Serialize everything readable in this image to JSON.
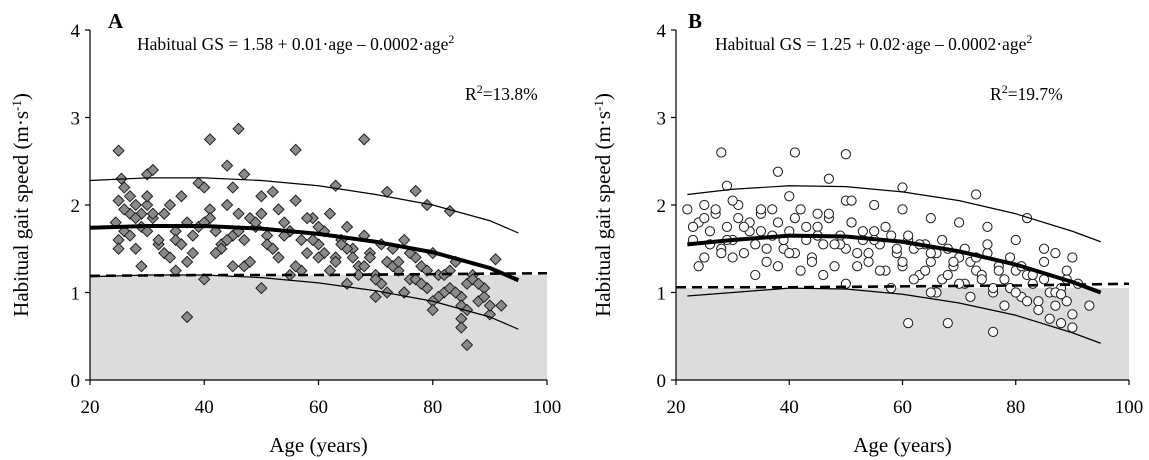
{
  "figure": {
    "colors": {
      "shade": "#dcdcdc",
      "marker_fill_A": "#8a8a8a",
      "marker_fill_B": "#ffffff",
      "marker_stroke": "#1a1a1a",
      "fit_line": "#000000",
      "band_line": "#000000",
      "threshold_line": "#000000"
    }
  },
  "chart_data": [
    {
      "type": "scatter",
      "panel_label": "A",
      "xlabel": "Age (years)",
      "ylabel": "Habitual gait speed (m·s",
      "ylabel_sup": "-1",
      "ylabel_end": ")",
      "xlim": [
        20,
        100
      ],
      "ylim": [
        0,
        4
      ],
      "xticks": [
        "20",
        "40",
        "60",
        "80",
        "100"
      ],
      "yticks": [
        "0",
        "1",
        "2",
        "3",
        "4"
      ],
      "equation": {
        "text": "Habitual GS = 1.58 + 0.01·age – 0.0002·age",
        "sup": "2",
        "intercept": 1.58,
        "linear": 0.01,
        "quadratic": -0.0002
      },
      "r2": {
        "prefix": "R",
        "sup": "2",
        "suffix": "=13.8%"
      },
      "marker": "diamond",
      "fit_curve": {
        "x": [
          20,
          30,
          40,
          50,
          60,
          70,
          80,
          90,
          95
        ],
        "y": [
          1.74,
          1.76,
          1.76,
          1.73,
          1.67,
          1.58,
          1.46,
          1.28,
          1.14
        ]
      },
      "upper_band": {
        "x": [
          20,
          30,
          40,
          50,
          60,
          70,
          80,
          90,
          95
        ],
        "y": [
          2.28,
          2.31,
          2.31,
          2.28,
          2.22,
          2.12,
          2.0,
          1.82,
          1.68
        ]
      },
      "lower_band": {
        "x": [
          20,
          30,
          40,
          50,
          60,
          70,
          80,
          90,
          95
        ],
        "y": [
          1.18,
          1.2,
          1.2,
          1.17,
          1.11,
          1.02,
          0.9,
          0.72,
          0.58
        ]
      },
      "threshold": 1.2,
      "threshold_segment": [
        {
          "x": [
            20,
            40,
            60,
            80,
            100
          ],
          "y": [
            1.19,
            1.2,
            1.2,
            1.21,
            1.22
          ]
        }
      ],
      "points": {
        "x": [
          25,
          25.5,
          26,
          27,
          28,
          29,
          30,
          31,
          24.5,
          25,
          26,
          27,
          28,
          29,
          30,
          31,
          32,
          33,
          34,
          35,
          36,
          37,
          38,
          39,
          40,
          41,
          42,
          43,
          44,
          45,
          46,
          47,
          48,
          49,
          50,
          51,
          52,
          53,
          54,
          55,
          56,
          57,
          58,
          59,
          60,
          61,
          62,
          63,
          64,
          65,
          66,
          67,
          68,
          69,
          70,
          71,
          72,
          73,
          74,
          75,
          76,
          77,
          78,
          79,
          80,
          81,
          82,
          83,
          84,
          85,
          86,
          87,
          88,
          89,
          90,
          91,
          92,
          25,
          27,
          29,
          31,
          33,
          35,
          37,
          39,
          41,
          43,
          45,
          47,
          49,
          51,
          53,
          55,
          57,
          59,
          61,
          63,
          65,
          67,
          69,
          71,
          73,
          75,
          77,
          79,
          81,
          83,
          85,
          87,
          89,
          26,
          28,
          30,
          32,
          34,
          36,
          38,
          40,
          42,
          44,
          46,
          48,
          50,
          52,
          54,
          56,
          58,
          60,
          62,
          64,
          66,
          68,
          70,
          72,
          74,
          76,
          78,
          80,
          82,
          84,
          86,
          88,
          25,
          30,
          35,
          40,
          45,
          50,
          55,
          60,
          65,
          70,
          75,
          80,
          85,
          90,
          37,
          41,
          44,
          46,
          56,
          68,
          85,
          86,
          47,
          52,
          63,
          72,
          77,
          79,
          83
        ],
        "y": [
          2.62,
          2.3,
          2.2,
          2.1,
          2.0,
          1.9,
          2.35,
          2.4,
          1.8,
          1.6,
          1.7,
          1.9,
          1.5,
          1.75,
          2.0,
          1.85,
          1.55,
          1.9,
          2.0,
          1.7,
          2.1,
          1.8,
          1.45,
          2.25,
          2.2,
          1.95,
          1.7,
          1.55,
          2.0,
          2.2,
          1.9,
          1.6,
          1.85,
          1.75,
          2.1,
          1.65,
          1.5,
          1.95,
          1.8,
          1.7,
          2.05,
          1.6,
          1.45,
          1.85,
          1.55,
          1.7,
          1.9,
          1.4,
          1.6,
          1.75,
          1.5,
          1.3,
          1.65,
          1.45,
          1.2,
          1.55,
          1.35,
          1.5,
          1.25,
          1.6,
          1.15,
          1.4,
          1.3,
          1.05,
          1.45,
          1.2,
          1.0,
          1.25,
          1.35,
          0.95,
          1.1,
          1.2,
          0.9,
          1.05,
          0.75,
          1.38,
          0.85,
          1.5,
          1.65,
          1.3,
          1.9,
          1.45,
          1.6,
          1.35,
          1.75,
          1.85,
          1.5,
          1.65,
          1.3,
          1.8,
          1.55,
          1.4,
          1.7,
          1.25,
          1.6,
          1.45,
          1.35,
          1.5,
          1.2,
          1.4,
          1.1,
          1.3,
          1.0,
          1.15,
          1.25,
          0.95,
          1.05,
          0.85,
          1.15,
          0.95,
          1.95,
          1.85,
          2.1,
          1.6,
          1.4,
          1.55,
          1.65,
          1.8,
          1.45,
          1.6,
          1.7,
          1.35,
          1.9,
          1.5,
          1.65,
          1.3,
          1.85,
          1.75,
          1.25,
          1.55,
          1.4,
          1.3,
          1.15,
          1.0,
          1.35,
          1.45,
          1.1,
          0.9,
          1.2,
          1.0,
          0.8,
          1.1,
          2.05,
          1.7,
          1.25,
          1.15,
          1.3,
          1.05,
          1.2,
          1.4,
          1.1,
          0.95,
          1.0,
          0.8,
          0.7,
          0.85,
          0.72,
          2.75,
          2.45,
          2.87,
          2.63,
          2.75,
          0.6,
          0.4,
          2.35,
          2.15,
          2.22,
          2.15,
          2.16,
          2.0,
          1.93
        ]
      }
    },
    {
      "type": "scatter",
      "panel_label": "B",
      "xlabel": "Age (years)",
      "ylabel": "Habitual gait speed (m·s",
      "ylabel_sup": "-1",
      "ylabel_end": ")",
      "xlim": [
        20,
        100
      ],
      "ylim": [
        0,
        4
      ],
      "xticks": [
        "20",
        "40",
        "60",
        "80",
        "100"
      ],
      "yticks": [
        "0",
        "1",
        "2",
        "3",
        "4"
      ],
      "equation": {
        "text": "Habitual GS = 1.25 + 0.02·age – 0.0002·age",
        "sup": "2",
        "intercept": 1.25,
        "linear": 0.02,
        "quadratic": -0.0002
      },
      "r2": {
        "prefix": "R",
        "sup": "2",
        "suffix": "=19.7%"
      },
      "marker": "circle",
      "fit_curve": {
        "x": [
          22,
          30,
          40,
          50,
          60,
          70,
          80,
          90,
          95
        ],
        "y": [
          1.55,
          1.6,
          1.65,
          1.64,
          1.58,
          1.47,
          1.32,
          1.12,
          1.0
        ]
      },
      "upper_band": {
        "x": [
          22,
          30,
          40,
          50,
          60,
          70,
          80,
          90,
          95
        ],
        "y": [
          2.12,
          2.18,
          2.22,
          2.21,
          2.15,
          2.05,
          1.9,
          1.7,
          1.58
        ]
      },
      "lower_band": {
        "x": [
          22,
          30,
          40,
          50,
          60,
          70,
          80,
          90,
          95
        ],
        "y": [
          0.96,
          1.0,
          1.05,
          1.04,
          0.98,
          0.88,
          0.74,
          0.54,
          0.42
        ]
      },
      "threshold": 1.05,
      "threshold_segment": [
        {
          "x": [
            20,
            40,
            60,
            80,
            100
          ],
          "y": [
            1.06,
            1.06,
            1.07,
            1.08,
            1.1
          ]
        }
      ],
      "points": {
        "x": [
          22,
          23,
          24,
          25,
          26,
          27,
          28,
          29,
          30,
          31,
          32,
          33,
          34,
          35,
          36,
          37,
          38,
          39,
          40,
          41,
          42,
          43,
          44,
          45,
          46,
          47,
          48,
          49,
          50,
          51,
          52,
          53,
          54,
          55,
          56,
          57,
          58,
          59,
          60,
          61,
          62,
          63,
          64,
          65,
          66,
          67,
          68,
          69,
          70,
          71,
          72,
          73,
          74,
          75,
          76,
          77,
          78,
          79,
          80,
          81,
          82,
          83,
          84,
          85,
          86,
          87,
          88,
          89,
          90,
          91,
          23,
          25,
          27,
          29,
          31,
          33,
          35,
          37,
          39,
          41,
          43,
          45,
          47,
          49,
          51,
          53,
          55,
          57,
          59,
          61,
          63,
          65,
          67,
          69,
          71,
          73,
          75,
          77,
          79,
          81,
          83,
          85,
          87,
          89,
          24,
          26,
          28,
          30,
          32,
          34,
          36,
          38,
          40,
          42,
          44,
          46,
          48,
          50,
          52,
          54,
          56,
          58,
          60,
          62,
          64,
          66,
          68,
          70,
          72,
          74,
          76,
          78,
          80,
          82,
          84,
          86,
          88,
          90,
          25,
          30,
          35,
          40,
          45,
          50,
          55,
          60,
          65,
          70,
          75,
          80,
          85,
          90,
          28,
          29,
          38,
          41,
          47,
          50,
          51,
          60,
          61,
          68,
          73,
          82,
          76,
          87,
          89,
          88,
          93,
          65
        ],
        "y": [
          1.95,
          1.6,
          1.8,
          1.4,
          1.7,
          1.9,
          1.5,
          1.75,
          1.6,
          1.85,
          1.45,
          1.7,
          1.55,
          1.9,
          1.35,
          1.65,
          1.8,
          1.5,
          1.7,
          1.45,
          1.95,
          1.6,
          1.4,
          1.75,
          1.55,
          1.85,
          1.3,
          1.65,
          1.5,
          1.8,
          1.45,
          1.6,
          1.35,
          1.7,
          1.55,
          1.25,
          1.65,
          1.45,
          1.3,
          1.6,
          1.5,
          1.2,
          1.55,
          1.35,
          1.45,
          1.15,
          1.5,
          1.3,
          1.4,
          1.1,
          1.35,
          1.25,
          1.2,
          1.45,
          1.0,
          1.3,
          1.15,
          1.05,
          1.25,
          0.95,
          1.2,
          1.1,
          0.9,
          1.15,
          1.0,
          0.85,
          1.05,
          0.9,
          0.75,
          1.1,
          1.75,
          1.85,
          1.95,
          1.6,
          2.0,
          1.8,
          1.7,
          1.95,
          1.6,
          1.85,
          1.75,
          1.65,
          1.9,
          1.55,
          1.8,
          1.7,
          1.6,
          1.75,
          1.5,
          1.65,
          1.55,
          1.45,
          1.6,
          1.35,
          1.5,
          1.4,
          1.55,
          1.25,
          1.4,
          1.3,
          1.2,
          1.35,
          1.0,
          1.15,
          1.3,
          1.55,
          1.45,
          1.4,
          1.75,
          1.2,
          1.5,
          1.3,
          1.45,
          1.25,
          1.35,
          1.2,
          1.55,
          1.1,
          1.3,
          1.45,
          1.25,
          1.05,
          1.35,
          1.15,
          1.25,
          1.0,
          1.2,
          1.1,
          0.95,
          1.15,
          1.05,
          0.85,
          1.0,
          0.9,
          0.8,
          0.7,
          0.65,
          0.6,
          2.0,
          2.05,
          1.95,
          2.1,
          1.9,
          2.05,
          2.0,
          1.95,
          1.85,
          1.8,
          1.75,
          1.6,
          1.5,
          1.4,
          2.6,
          2.22,
          2.38,
          2.6,
          2.3,
          2.58,
          2.05,
          2.2,
          0.65,
          0.65,
          2.12,
          1.85,
          0.55,
          1.45,
          1.25,
          0.98,
          0.85,
          1.0
        ]
      }
    }
  ]
}
